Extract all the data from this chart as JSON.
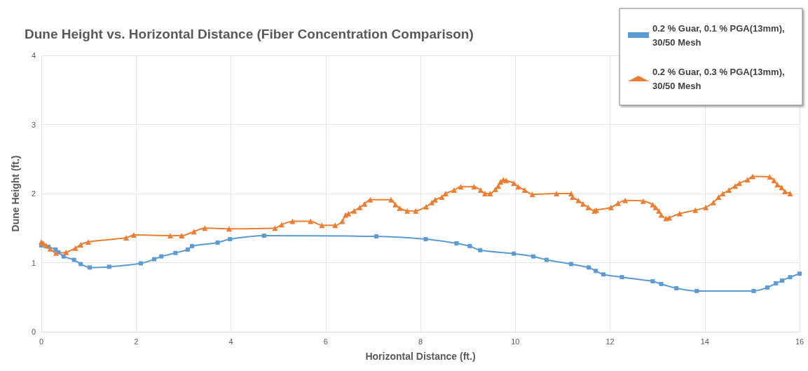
{
  "chart_data": {
    "type": "line",
    "title": "Dune Height vs. Horizontal Distance (Fiber Concentration Comparison)",
    "xlabel": "Horizontal Distance (ft.)",
    "ylabel": "Dune Height (ft.)",
    "xlim": [
      0,
      16
    ],
    "xticks": [
      0,
      2,
      4,
      6,
      8,
      10,
      12,
      14,
      16
    ],
    "ylim": [
      0,
      4
    ],
    "yticks": [
      0,
      1,
      2,
      3,
      4
    ],
    "grid": true,
    "legend": "top right",
    "series": [
      {
        "name": "0.2 % Guar, 0.1 % PGA(13mm), 30/50 Mesh",
        "color": "#5b9bd5",
        "marker": "square",
        "x": [
          0,
          0.15,
          0.3,
          0.36,
          0.47,
          0.69,
          0.83,
          1.02,
          1.43,
          2.1,
          2.38,
          2.53,
          2.83,
          3.09,
          3.18,
          3.72,
          3.98,
          4.7,
          7.07,
          8.11,
          8.76,
          9.04,
          9.26,
          9.97,
          10.38,
          10.66,
          11.18,
          11.55,
          11.7,
          11.86,
          12.25,
          12.9,
          13.08,
          13.4,
          13.83,
          15.03,
          15.32,
          15.5,
          15.63,
          15.8,
          16
        ],
        "values": [
          1.25,
          1.23,
          1.19,
          1.15,
          1.09,
          1.04,
          0.98,
          0.93,
          0.94,
          0.99,
          1.05,
          1.09,
          1.14,
          1.19,
          1.24,
          1.29,
          1.34,
          1.39,
          1.38,
          1.34,
          1.28,
          1.24,
          1.18,
          1.13,
          1.09,
          1.04,
          0.98,
          0.93,
          0.88,
          0.83,
          0.79,
          0.73,
          0.69,
          0.63,
          0.59,
          0.59,
          0.64,
          0.7,
          0.74,
          0.79,
          0.84
        ]
      },
      {
        "name": "0.2 % Guar, 0.3 % PGA(13mm), 30/50 Mesh",
        "color": "#ed7d31",
        "marker": "triangle",
        "x": [
          0,
          0.04,
          0.1,
          0.19,
          0.31,
          0.52,
          0.72,
          0.83,
          0.99,
          1.79,
          1.95,
          2.72,
          2.96,
          3.22,
          3.45,
          3.96,
          4.93,
          5.07,
          5.3,
          5.68,
          5.92,
          6.2,
          6.35,
          6.42,
          6.48,
          6.6,
          6.72,
          6.82,
          6.94,
          7.38,
          7.47,
          7.56,
          7.72,
          7.9,
          8.12,
          8.24,
          8.31,
          8.45,
          8.53,
          8.71,
          8.85,
          9.13,
          9.27,
          9.36,
          9.47,
          9.58,
          9.64,
          9.69,
          9.75,
          9.81,
          9.97,
          10.06,
          10.2,
          10.36,
          10.87,
          11.18,
          11.21,
          11.33,
          11.43,
          11.54,
          11.67,
          11.71,
          12.02,
          12.17,
          12.32,
          12.7,
          12.9,
          12.96,
          13.03,
          13.08,
          13.18,
          13.25,
          13.47,
          13.8,
          14.02,
          14.18,
          14.29,
          14.38,
          14.51,
          14.64,
          14.73,
          14.9,
          15.01,
          15.37,
          15.46,
          15.53,
          15.62,
          15.69,
          15.8
        ],
        "values": [
          1.3,
          1.28,
          1.25,
          1.2,
          1.14,
          1.15,
          1.21,
          1.26,
          1.3,
          1.36,
          1.4,
          1.39,
          1.39,
          1.45,
          1.5,
          1.49,
          1.5,
          1.55,
          1.6,
          1.6,
          1.54,
          1.54,
          1.6,
          1.69,
          1.71,
          1.75,
          1.8,
          1.85,
          1.91,
          1.91,
          1.84,
          1.79,
          1.75,
          1.75,
          1.81,
          1.87,
          1.91,
          1.95,
          2.0,
          2.05,
          2.1,
          2.1,
          2.05,
          2.0,
          2.0,
          2.06,
          2.11,
          2.17,
          2.2,
          2.19,
          2.15,
          2.1,
          2.05,
          1.99,
          2.0,
          2.0,
          1.95,
          1.9,
          1.85,
          1.8,
          1.75,
          1.76,
          1.8,
          1.86,
          1.9,
          1.89,
          1.84,
          1.8,
          1.75,
          1.69,
          1.64,
          1.65,
          1.71,
          1.76,
          1.8,
          1.87,
          1.95,
          2.0,
          2.05,
          2.11,
          2.15,
          2.2,
          2.25,
          2.24,
          2.19,
          2.13,
          2.09,
          2.03,
          2.0
        ]
      }
    ]
  }
}
